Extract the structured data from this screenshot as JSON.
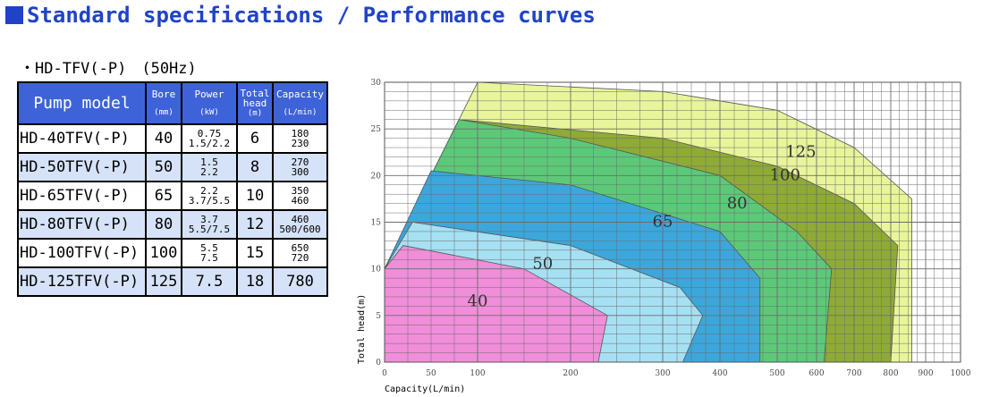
{
  "page": {
    "title": "Standard specifications / Performance curves"
  },
  "spec_table": {
    "section_title": "・HD-TFV(-P)　(50Hz)",
    "headers": {
      "model": "Pump model",
      "bore": "Bore",
      "bore_unit": "(mm)",
      "power": "Power",
      "power_unit": "(kW)",
      "head_line1": "Total",
      "head_line2": "head",
      "head_unit": "(m)",
      "capacity": "Capacity",
      "capacity_unit": "(L/min)"
    },
    "rows": [
      {
        "model": "HD-40TFV(-P)",
        "bore": "40",
        "power": [
          "0.75",
          "1.5/2.2"
        ],
        "head": "6",
        "capacity": [
          "180",
          "230"
        ]
      },
      {
        "model": "HD-50TFV(-P)",
        "bore": "50",
        "power": [
          "1.5",
          "2.2"
        ],
        "head": "8",
        "capacity": [
          "270",
          "300"
        ]
      },
      {
        "model": "HD-65TFV(-P)",
        "bore": "65",
        "power": [
          "2.2",
          "3.7/5.5"
        ],
        "head": "10",
        "capacity": [
          "350",
          "460"
        ]
      },
      {
        "model": "HD-80TFV(-P)",
        "bore": "80",
        "power": [
          "3.7",
          "5.5/7.5"
        ],
        "head": "12",
        "capacity": [
          "460",
          "500/600"
        ]
      },
      {
        "model": "HD-100TFV(-P)",
        "bore": "100",
        "power": [
          "5.5",
          "7.5"
        ],
        "head": "15",
        "capacity": [
          "650",
          "720"
        ]
      },
      {
        "model": "HD-125TFV(-P)",
        "bore": "125",
        "power": [
          "7.5"
        ],
        "head": "18",
        "capacity": [
          "780"
        ]
      }
    ]
  },
  "chart_data": {
    "type": "area",
    "title": "",
    "xlabel": "Capacity(L/min)",
    "ylabel": "Total head(m)",
    "x_scale": "non-linear (tick positions as printed)",
    "xticks": [
      0,
      50,
      100,
      200,
      300,
      400,
      500,
      600,
      700,
      800,
      900,
      1000
    ],
    "yticks": [
      0,
      5,
      10,
      15,
      20,
      25,
      30
    ],
    "xlim": [
      0,
      1000
    ],
    "ylim": [
      0,
      30
    ],
    "grid": true,
    "series": [
      {
        "name": "125",
        "color": "#e9f59a",
        "boundary": [
          [
            0,
            10
          ],
          [
            100,
            30
          ],
          [
            300,
            29
          ],
          [
            500,
            27
          ],
          [
            700,
            23
          ],
          [
            860,
            17.5
          ],
          [
            860,
            0
          ]
        ]
      },
      {
        "name": "100",
        "color": "#8fab35",
        "boundary": [
          [
            0,
            10
          ],
          [
            80,
            26
          ],
          [
            300,
            24
          ],
          [
            500,
            21
          ],
          [
            700,
            17
          ],
          [
            820,
            12.5
          ],
          [
            800,
            0
          ]
        ]
      },
      {
        "name": "80",
        "color": "#5cc979",
        "boundary": [
          [
            0,
            10
          ],
          [
            80,
            26
          ],
          [
            200,
            24
          ],
          [
            400,
            20
          ],
          [
            550,
            14
          ],
          [
            640,
            10
          ],
          [
            620,
            0
          ]
        ]
      },
      {
        "name": "65",
        "color": "#3ba7dc",
        "boundary": [
          [
            0,
            10
          ],
          [
            50,
            20.5
          ],
          [
            200,
            19
          ],
          [
            400,
            14
          ],
          [
            470,
            9
          ],
          [
            470,
            0
          ]
        ]
      },
      {
        "name": "50",
        "color": "#a6e0f3",
        "boundary": [
          [
            0,
            10
          ],
          [
            30,
            15
          ],
          [
            200,
            12.5
          ],
          [
            330,
            8
          ],
          [
            370,
            5
          ],
          [
            335,
            0
          ]
        ]
      },
      {
        "name": "40",
        "color": "#f08ed9",
        "boundary": [
          [
            0,
            10
          ],
          [
            20,
            12.5
          ],
          [
            150,
            10
          ],
          [
            240,
            5
          ],
          [
            230,
            0
          ]
        ]
      }
    ]
  }
}
